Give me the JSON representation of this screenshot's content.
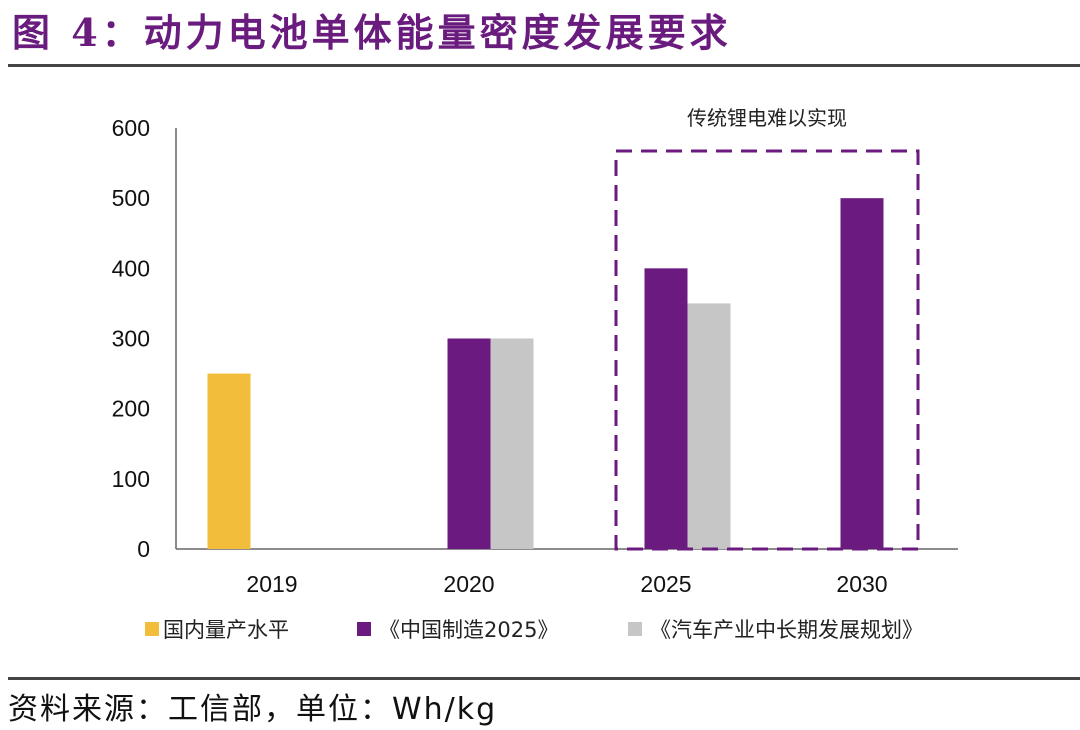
{
  "title": "图 4：动力电池单体能量密度发展要求",
  "source": "资料来源：工信部，单位：Wh/kg",
  "chart_data": {
    "type": "bar",
    "title": "动力电池单体能量密度发展要求",
    "xlabel": "",
    "ylabel": "Wh/kg",
    "ylim": [
      0,
      600
    ],
    "yticks": [
      0,
      100,
      200,
      300,
      400,
      500,
      600
    ],
    "categories": [
      "2019",
      "2020",
      "2025",
      "2030"
    ],
    "series": [
      {
        "name": "国内量产水平",
        "color": "#f2bd3a",
        "values": [
          250,
          null,
          null,
          null
        ]
      },
      {
        "name": "《中国制造2025》",
        "color": "#6b1a80",
        "values": [
          null,
          300,
          400,
          500
        ]
      },
      {
        "name": "《汽车产业中长期发展规划》",
        "color": "#c6c6c6",
        "values": [
          null,
          300,
          350,
          null
        ]
      }
    ],
    "legend_position": "bottom",
    "grid": false,
    "annotation": {
      "text": "传统锂电难以实现",
      "categories": [
        "2025",
        "2030"
      ]
    }
  }
}
